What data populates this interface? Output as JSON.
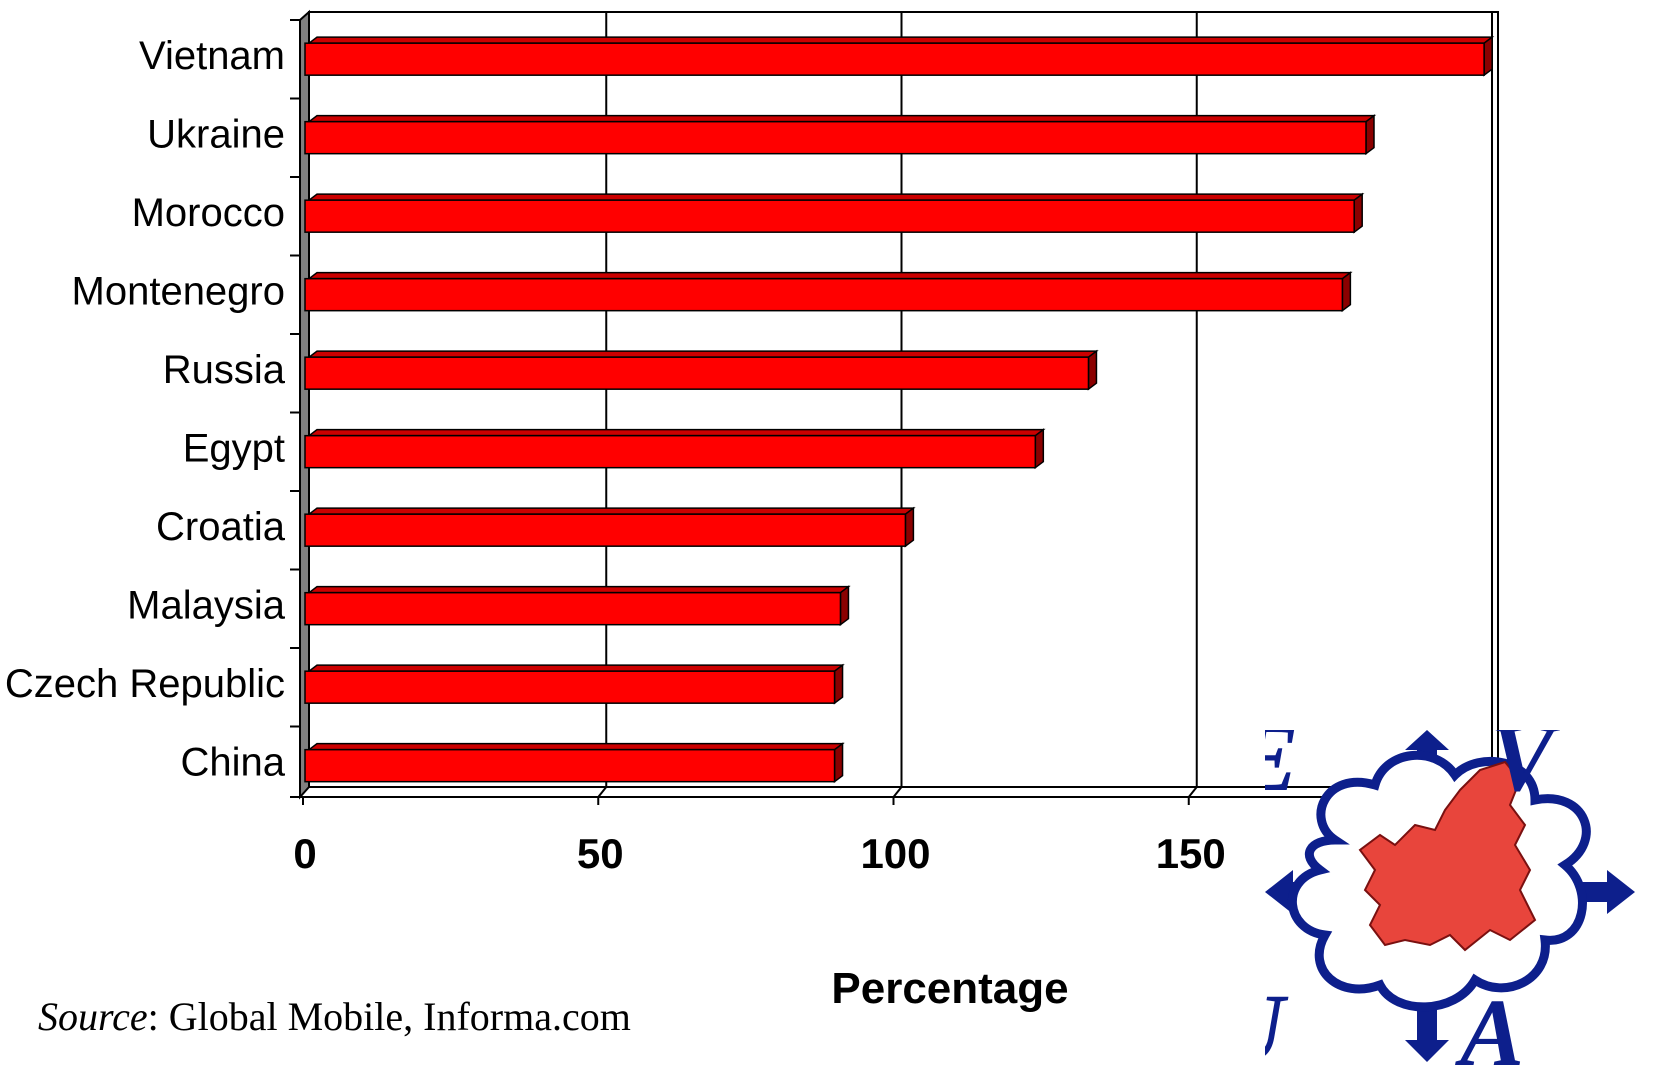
{
  "chart_data": {
    "type": "bar",
    "orientation": "horizontal",
    "categories": [
      "Vietnam",
      "Ukraine",
      "Morocco",
      "Montenegro",
      "Russia",
      "Egypt",
      "Croatia",
      "Malaysia",
      "Czech Republic",
      "China"
    ],
    "values": [
      199,
      179,
      177,
      175,
      132,
      123,
      101,
      90,
      89,
      89
    ],
    "xlabel": "Percentage",
    "ylabel": "",
    "xlim": [
      0,
      200
    ],
    "xticks": [
      0,
      50,
      100,
      150,
      200
    ],
    "grid": "vertical",
    "bar_color": "#ff0000",
    "bar_side_color": "#8b0000",
    "wall_color": "#808080"
  },
  "source": {
    "label": "Source",
    "text": ": Global Mobile, Informa.com"
  },
  "logo": {
    "letters": [
      "E",
      "V",
      "U",
      "A"
    ],
    "arrow_color": "#0d1f8c",
    "map_color": "#e8453c"
  }
}
